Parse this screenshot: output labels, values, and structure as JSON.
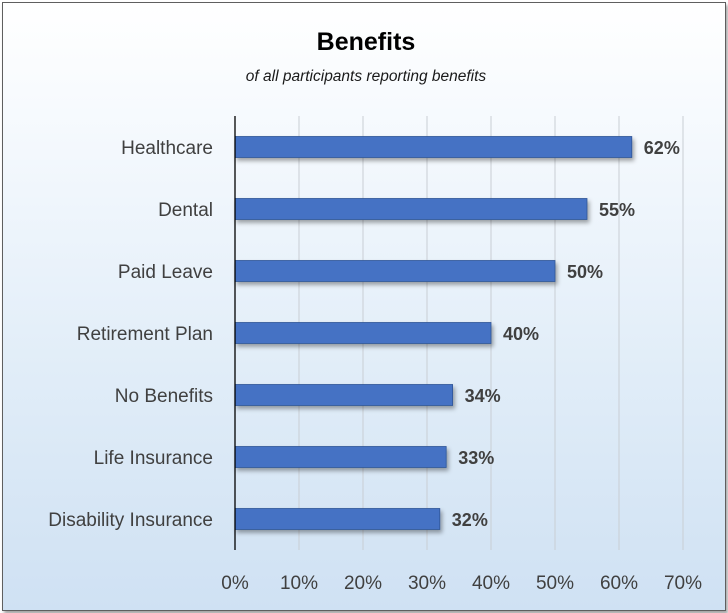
{
  "chart_data": {
    "type": "bar",
    "orientation": "horizontal",
    "title": "Benefits",
    "subtitle": "of all participants reporting benefits",
    "categories": [
      "Healthcare",
      "Dental",
      "Paid Leave",
      "Retirement Plan",
      "No Benefits",
      "Life Insurance",
      "Disability Insurance"
    ],
    "values": [
      62,
      55,
      50,
      40,
      34,
      33,
      32
    ],
    "data_labels": [
      "62%",
      "55%",
      "50%",
      "40%",
      "34%",
      "33%",
      "32%"
    ],
    "xlim": [
      0,
      70
    ],
    "x_ticks": [
      0,
      10,
      20,
      30,
      40,
      50,
      60,
      70
    ],
    "x_tick_labels": [
      "0%",
      "10%",
      "20%",
      "30%",
      "40%",
      "50%",
      "60%",
      "70%"
    ],
    "grid": true,
    "legend": "none",
    "colors": {
      "bar": "#4472c4",
      "bar_edge": "#2f5597",
      "text": "#404040",
      "gridline": "#c9ced4"
    }
  }
}
